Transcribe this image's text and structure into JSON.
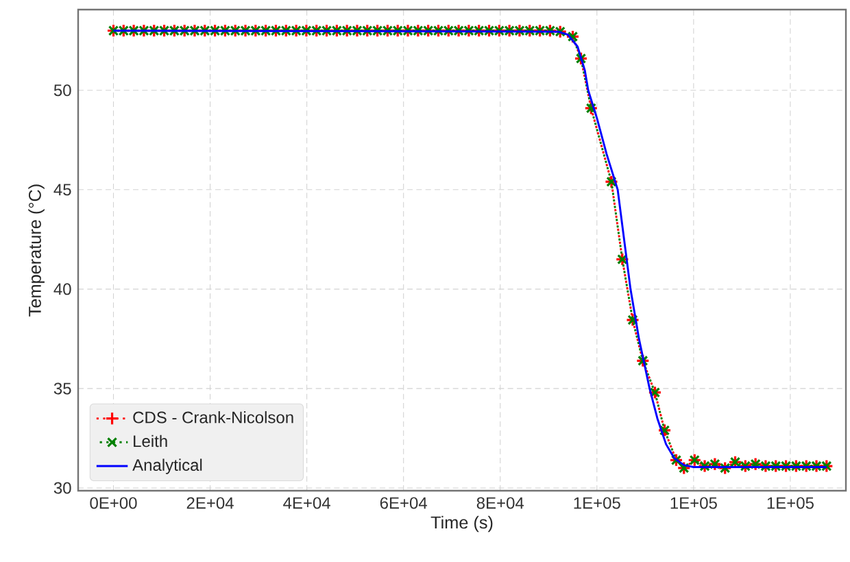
{
  "chart_data": {
    "type": "line",
    "xlabel": "Time (s)",
    "ylabel": "Temperature (°C)",
    "xlim": [
      -7300,
      151500
    ],
    "ylim": [
      29.86,
      54.06
    ],
    "xticks": [
      {
        "value": 0,
        "label": "0E+00"
      },
      {
        "value": 20000,
        "label": "2E+04"
      },
      {
        "value": 40000,
        "label": "4E+04"
      },
      {
        "value": 60000,
        "label": "6E+04"
      },
      {
        "value": 80000,
        "label": "8E+04"
      },
      {
        "value": 100000,
        "label": "1E+05"
      },
      {
        "value": 120000,
        "label": "1E+05"
      },
      {
        "value": 140000,
        "label": "1E+05"
      }
    ],
    "yticks": [
      30,
      35,
      40,
      45,
      50
    ],
    "grid": true,
    "legend": "bottom left",
    "series": [
      {
        "name": "CDS - Crank-Nicolson",
        "color": "#ff0000",
        "marker": "cross",
        "line_style": "dotted",
        "x": [
          0,
          2100,
          4200,
          6300,
          8400,
          10500,
          12600,
          14700,
          16800,
          18900,
          21000,
          23100,
          25200,
          27300,
          29400,
          31500,
          33600,
          35700,
          37800,
          39900,
          42000,
          44100,
          46200,
          48300,
          50400,
          52500,
          54600,
          56700,
          58800,
          60900,
          63000,
          65100,
          67200,
          69300,
          71400,
          73500,
          75600,
          77700,
          79800,
          81900,
          84000,
          86100,
          88200,
          90300,
          92400,
          95000,
          96700,
          98800,
          103000,
          105250,
          107400,
          109500,
          112000,
          114000,
          116400,
          118000,
          120200,
          122300,
          124400,
          126500,
          128600,
          130700,
          132800,
          134900,
          137000,
          139100,
          141200,
          143300,
          145400,
          147500
        ],
        "values": [
          53,
          53,
          53,
          53,
          53,
          53,
          53,
          53,
          53,
          53,
          53,
          53,
          53,
          53,
          53,
          53,
          53,
          53,
          53,
          53,
          53,
          53,
          53,
          53,
          53,
          53,
          53,
          53,
          53,
          53,
          53,
          53,
          53,
          53,
          53,
          53,
          53,
          53,
          53,
          53,
          53,
          53,
          53,
          53,
          52.95,
          52.7,
          51.6,
          49.1,
          45.4,
          41.5,
          38.45,
          36.4,
          34.8,
          32.9,
          31.4,
          31.0,
          31.4,
          31.1,
          31.2,
          31.0,
          31.3,
          31.1,
          31.2,
          31.1,
          31.1,
          31.1,
          31.1,
          31.1,
          31.1,
          31.1
        ]
      },
      {
        "name": "Leith",
        "color": "#008000",
        "marker": "cross",
        "line_style": "dotted",
        "x": [
          0,
          2100,
          4200,
          6300,
          8400,
          10500,
          12600,
          14700,
          16800,
          18900,
          21000,
          23100,
          25200,
          27300,
          29400,
          31500,
          33600,
          35700,
          37800,
          39900,
          42000,
          44100,
          46200,
          48300,
          50400,
          52500,
          54600,
          56700,
          58800,
          60900,
          63000,
          65100,
          67200,
          69300,
          71400,
          73500,
          75600,
          77700,
          79800,
          81900,
          84000,
          86100,
          88200,
          90300,
          92400,
          95000,
          96700,
          98800,
          103000,
          105250,
          107400,
          109500,
          112000,
          114000,
          116400,
          118000,
          120200,
          122300,
          124400,
          126500,
          128600,
          130700,
          132800,
          134900,
          137000,
          139100,
          141200,
          143300,
          145400,
          147500
        ],
        "values": [
          53,
          53,
          53,
          53,
          53,
          53,
          53,
          53,
          53,
          53,
          53,
          53,
          53,
          53,
          53,
          53,
          53,
          53,
          53,
          53,
          53,
          53,
          53,
          53,
          53,
          53,
          53,
          53,
          53,
          53,
          53,
          53,
          53,
          53,
          53,
          53,
          53,
          53,
          53,
          53,
          53,
          53,
          53,
          53,
          52.95,
          52.7,
          51.6,
          49.1,
          45.4,
          41.5,
          38.45,
          36.4,
          34.8,
          32.9,
          31.4,
          31.0,
          31.4,
          31.1,
          31.2,
          31.0,
          31.3,
          31.1,
          31.2,
          31.1,
          31.1,
          31.1,
          31.1,
          31.1,
          31.1,
          31.1
        ]
      },
      {
        "name": "Analytical",
        "color": "#0000ff",
        "marker": "none",
        "line_style": "solid",
        "x": [
          0,
          92000,
          94000,
          96000,
          97500,
          98200,
          100000,
          102000,
          104300,
          106950,
          108700,
          110900,
          112500,
          114300,
          116000,
          118000,
          120000,
          147500
        ],
        "values": [
          53,
          52.95,
          52.8,
          52.2,
          51.0,
          50.0,
          48.6,
          46.8,
          45,
          40,
          37.5,
          35,
          33.5,
          32.2,
          31.5,
          31.15,
          31.05,
          31.05
        ]
      }
    ]
  }
}
